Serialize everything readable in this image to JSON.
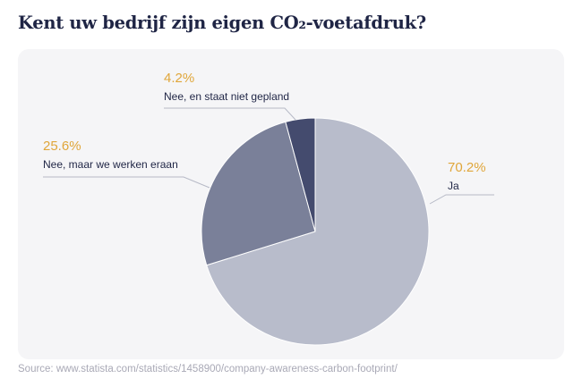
{
  "title": "Kent uw bedrijf zijn eigen CO₂-voetafdruk?",
  "source": "Source: www.statista.com/statistics/1458900/company-awareness-carbon-footprint/",
  "colors": {
    "title": "#1f2545",
    "percent": "#e0a63a",
    "label": "#1f2545",
    "leader": "#b6b9c6",
    "panel": "#f5f5f7"
  },
  "chart_data": {
    "type": "pie",
    "slices": [
      {
        "label": "Ja",
        "value": 70.2,
        "value_text": "70.2%",
        "color": "#b8bccb"
      },
      {
        "label": "Nee, maar we werken eraan",
        "value": 25.6,
        "value_text": "25.6%",
        "color": "#7a8099"
      },
      {
        "label": "Nee, en staat niet gepland",
        "value": 4.2,
        "value_text": "4.2%",
        "color": "#444b6e"
      }
    ]
  }
}
